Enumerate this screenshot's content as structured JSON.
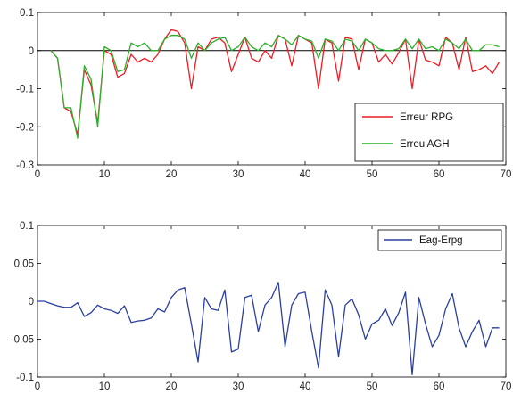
{
  "chart_data": [
    {
      "type": "line",
      "xlim": [
        0,
        70
      ],
      "ylim": [
        -0.3,
        0.1
      ],
      "x_ticks": [
        "0",
        "10",
        "20",
        "30",
        "40",
        "50",
        "60",
        "70"
      ],
      "y_ticks": [
        "0.1",
        "0",
        "-0.1",
        "-0.2",
        "-0.3"
      ],
      "grid": false,
      "legend_position": "lower-right",
      "reference_line": {
        "y": 0,
        "color": "#000000"
      },
      "series": [
        {
          "name": "Erreur RPG",
          "color": "#ee1c25",
          "x": [
            2,
            3,
            4,
            5,
            6,
            7,
            8,
            9,
            10,
            11,
            12,
            13,
            14,
            15,
            16,
            17,
            18,
            19,
            20,
            21,
            22,
            23,
            24,
            25,
            26,
            27,
            28,
            29,
            30,
            31,
            32,
            33,
            34,
            35,
            36,
            37,
            38,
            39,
            40,
            41,
            42,
            43,
            44,
            45,
            46,
            47,
            48,
            49,
            50,
            51,
            52,
            53,
            54,
            55,
            56,
            57,
            58,
            59,
            60,
            61,
            62,
            63,
            64,
            65,
            66,
            67,
            68,
            69
          ],
          "values": [
            0.0,
            -0.02,
            -0.15,
            -0.16,
            -0.22,
            -0.05,
            -0.09,
            -0.19,
            0.0,
            -0.01,
            -0.07,
            -0.06,
            -0.01,
            -0.03,
            -0.02,
            -0.03,
            -0.01,
            0.03,
            0.055,
            0.05,
            0.02,
            -0.1,
            0.01,
            0.0,
            0.03,
            0.035,
            0.02,
            -0.055,
            -0.01,
            0.035,
            -0.02,
            -0.03,
            0.0,
            -0.02,
            0.04,
            0.03,
            -0.04,
            0.04,
            0.03,
            0.02,
            -0.1,
            0.03,
            0.02,
            -0.08,
            0.035,
            0.03,
            -0.05,
            0.03,
            0.02,
            -0.03,
            -0.01,
            -0.035,
            -0.005,
            0.03,
            -0.1,
            0.03,
            -0.025,
            -0.03,
            -0.04,
            0.035,
            0.02,
            -0.05,
            0.035,
            -0.055,
            -0.05,
            -0.04,
            -0.06,
            -0.03
          ]
        },
        {
          "name": "Erreu AGH",
          "color": "#2ab02a",
          "x": [
            2,
            3,
            4,
            5,
            6,
            7,
            8,
            9,
            10,
            11,
            12,
            13,
            14,
            15,
            16,
            17,
            18,
            19,
            20,
            21,
            22,
            23,
            24,
            25,
            26,
            27,
            28,
            29,
            30,
            31,
            32,
            33,
            34,
            35,
            36,
            37,
            38,
            39,
            40,
            41,
            42,
            43,
            44,
            45,
            46,
            47,
            48,
            49,
            50,
            51,
            52,
            53,
            54,
            55,
            56,
            57,
            58,
            59,
            60,
            61,
            62,
            63,
            64,
            65,
            66,
            67,
            68,
            69
          ],
          "values": [
            0.0,
            -0.02,
            -0.15,
            -0.15,
            -0.23,
            -0.04,
            -0.075,
            -0.2,
            0.01,
            0.0,
            -0.055,
            -0.05,
            0.02,
            0.01,
            0.02,
            0.0,
            0.0,
            0.03,
            0.04,
            0.04,
            0.03,
            -0.02,
            0.02,
            0.0,
            0.02,
            0.03,
            0.035,
            0.0,
            0.01,
            0.035,
            0.01,
            0.0,
            0.02,
            0.01,
            0.04,
            0.03,
            0.015,
            0.04,
            0.03,
            0.025,
            -0.02,
            0.03,
            0.025,
            0.0,
            0.03,
            0.025,
            0.0,
            0.03,
            0.02,
            0.005,
            0.0,
            0.0,
            0.005,
            0.03,
            0.005,
            0.03,
            0.005,
            0.01,
            0.0,
            0.03,
            0.02,
            0.005,
            0.03,
            0.0,
            0.0,
            0.015,
            0.015,
            0.01
          ]
        }
      ]
    },
    {
      "type": "line",
      "xlim": [
        0,
        70
      ],
      "ylim": [
        -0.1,
        0.1
      ],
      "x_ticks": [
        "0",
        "10",
        "20",
        "30",
        "40",
        "50",
        "60",
        "70"
      ],
      "y_ticks": [
        "0.1",
        "0.05",
        "0",
        "-0.05",
        "-0.1"
      ],
      "grid": false,
      "legend_position": "top-right",
      "series": [
        {
          "name": "Eag-Erpg",
          "color": "#2c3f9e",
          "x": [
            0,
            1,
            2,
            3,
            4,
            5,
            6,
            7,
            8,
            9,
            10,
            11,
            12,
            13,
            14,
            15,
            16,
            17,
            18,
            19,
            20,
            21,
            22,
            23,
            24,
            25,
            26,
            27,
            28,
            29,
            30,
            31,
            32,
            33,
            34,
            35,
            36,
            37,
            38,
            39,
            40,
            41,
            42,
            43,
            44,
            45,
            46,
            47,
            48,
            49,
            50,
            51,
            52,
            53,
            54,
            55,
            56,
            57,
            58,
            59,
            60,
            61,
            62,
            63,
            64,
            65,
            66,
            67,
            68,
            69
          ],
          "values": [
            0.0,
            0.0,
            -0.003,
            -0.006,
            -0.008,
            -0.008,
            -0.002,
            -0.02,
            -0.015,
            -0.005,
            -0.01,
            -0.012,
            -0.016,
            -0.006,
            -0.028,
            -0.026,
            -0.025,
            -0.022,
            -0.01,
            -0.014,
            0.005,
            0.015,
            0.018,
            -0.03,
            -0.08,
            0.005,
            -0.01,
            -0.012,
            0.015,
            -0.067,
            -0.063,
            0.005,
            0.008,
            -0.04,
            -0.005,
            0.005,
            0.025,
            -0.06,
            -0.005,
            0.01,
            0.012,
            -0.04,
            -0.088,
            0.015,
            -0.005,
            -0.073,
            -0.005,
            0.003,
            -0.018,
            -0.05,
            -0.03,
            -0.025,
            -0.01,
            -0.032,
            -0.015,
            0.012,
            -0.097,
            0.005,
            -0.03,
            -0.06,
            -0.045,
            -0.01,
            0.01,
            -0.035,
            -0.06,
            -0.04,
            -0.025,
            -0.06,
            -0.035,
            -0.035
          ]
        }
      ]
    }
  ]
}
